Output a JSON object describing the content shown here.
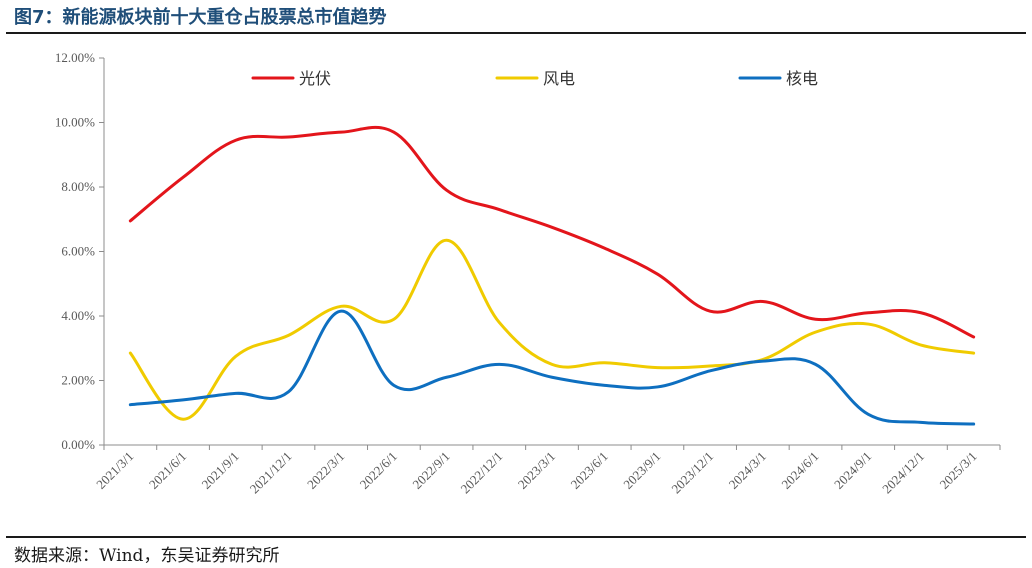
{
  "figure_title": "图7：新能源板块前十大重仓占股票总市值趋势",
  "source_note": "数据来源：Wind，东吴证券研究所",
  "chart_data": {
    "type": "line",
    "title": "",
    "xlabel": "",
    "ylabel": "",
    "ylim": [
      0,
      12
    ],
    "y_unit": "%",
    "y_ticks": [
      "0.00%",
      "2.00%",
      "4.00%",
      "6.00%",
      "8.00%",
      "10.00%",
      "12.00%"
    ],
    "x_tick_labels": [
      "2021/3/1",
      "2021/6/1",
      "2021/9/1",
      "2021/12/1",
      "2022/3/1",
      "2022/6/1",
      "2022/9/1",
      "2022/12/1",
      "2023/3/1",
      "2023/6/1",
      "2023/9/1",
      "2023/12/1",
      "2024/3/1",
      "2024/6/1",
      "2024/9/1",
      "2024/12/1",
      "2025/3/1"
    ],
    "legend_position": "top",
    "grid": false,
    "series": [
      {
        "name": "光伏",
        "color": "#e3151b",
        "values": [
          6.95,
          8.3,
          9.45,
          9.55,
          9.7,
          9.7,
          7.9,
          7.3,
          6.75,
          6.1,
          5.3,
          4.15,
          4.45,
          3.9,
          4.1,
          4.1,
          3.35
        ]
      },
      {
        "name": "风电",
        "color": "#f0cb00",
        "values": [
          2.85,
          0.8,
          2.75,
          3.4,
          4.3,
          3.9,
          6.35,
          3.8,
          2.5,
          2.55,
          2.4,
          2.45,
          2.65,
          3.5,
          3.75,
          3.1,
          2.85
        ]
      },
      {
        "name": "核电",
        "color": "#0e6fc0",
        "values": [
          1.25,
          1.4,
          1.6,
          1.65,
          4.15,
          1.85,
          2.1,
          2.5,
          2.1,
          1.85,
          1.8,
          2.3,
          2.6,
          2.5,
          0.95,
          0.7,
          0.65
        ]
      }
    ]
  }
}
